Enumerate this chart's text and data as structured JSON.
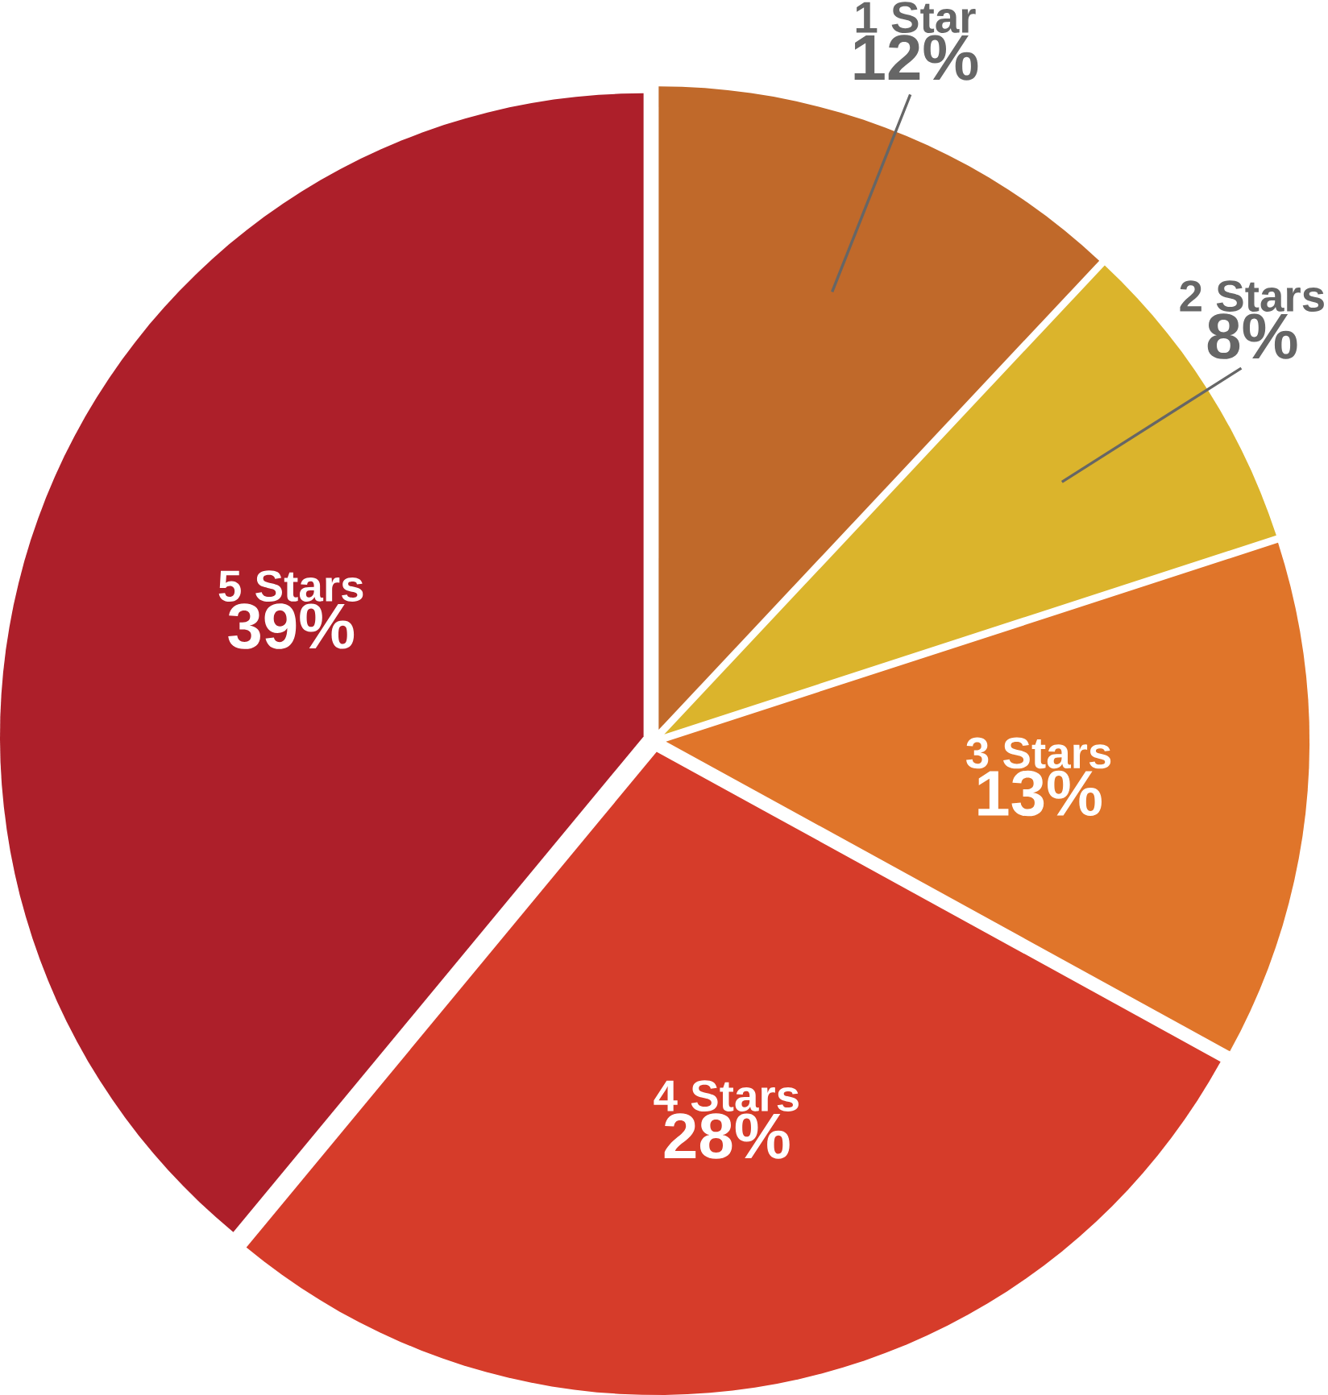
{
  "chart_data": {
    "type": "pie",
    "categories": [
      "1 Star",
      "2 Stars",
      "3 Stars",
      "4 Stars",
      "5 Stars"
    ],
    "values": [
      12,
      8,
      13,
      28,
      39
    ],
    "colors": [
      "#c0692a",
      "#dbb42c",
      "#e0752a",
      "#d63c2a",
      "#ad1f2a"
    ],
    "value_labels": [
      "12%",
      "8%",
      "13%",
      "28%",
      "39%"
    ]
  }
}
